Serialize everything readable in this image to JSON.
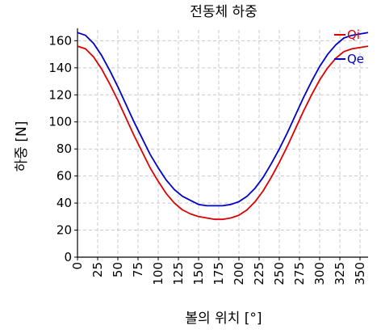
{
  "chart_data": {
    "type": "line",
    "title": "전동체 하중",
    "xlabel": "볼의 위치 [°]",
    "ylabel": "하중 [N]",
    "xlim": [
      0,
      360
    ],
    "ylim": [
      0,
      168
    ],
    "xticks": [
      0,
      25,
      50,
      75,
      100,
      125,
      150,
      175,
      200,
      225,
      250,
      275,
      300,
      325,
      350
    ],
    "yticks": [
      0,
      20,
      40,
      60,
      80,
      100,
      120,
      140,
      160
    ],
    "grid": true,
    "legend_position": "top-right",
    "series": [
      {
        "name": "Qi",
        "color": "#dd0000",
        "x": [
          0,
          10,
          20,
          30,
          40,
          50,
          60,
          70,
          80,
          90,
          100,
          110,
          120,
          130,
          140,
          150,
          160,
          170,
          175,
          180,
          190,
          200,
          210,
          220,
          230,
          240,
          250,
          260,
          270,
          280,
          290,
          300,
          310,
          320,
          330,
          340,
          350,
          360
        ],
        "values": [
          156,
          154,
          148,
          139,
          128,
          116,
          103,
          90,
          78,
          66,
          56,
          47,
          40,
          35,
          32,
          30,
          29,
          28,
          28,
          28,
          29,
          31,
          35,
          41,
          49,
          59,
          70,
          82,
          95,
          108,
          120,
          131,
          140,
          147,
          152,
          154,
          155,
          156
        ]
      },
      {
        "name": "Qe",
        "color": "#0000cc",
        "x": [
          0,
          10,
          20,
          30,
          40,
          50,
          60,
          70,
          80,
          90,
          100,
          110,
          120,
          130,
          140,
          150,
          160,
          170,
          175,
          180,
          190,
          200,
          210,
          220,
          230,
          240,
          250,
          260,
          270,
          280,
          290,
          300,
          310,
          320,
          330,
          340,
          350,
          360
        ],
        "values": [
          166,
          164,
          158,
          149,
          138,
          126,
          113,
          100,
          88,
          76,
          66,
          57,
          50,
          45,
          42,
          39,
          38,
          38,
          38,
          38,
          39,
          41,
          45,
          51,
          59,
          69,
          80,
          92,
          105,
          118,
          130,
          141,
          150,
          157,
          162,
          164,
          165,
          166
        ]
      }
    ]
  }
}
